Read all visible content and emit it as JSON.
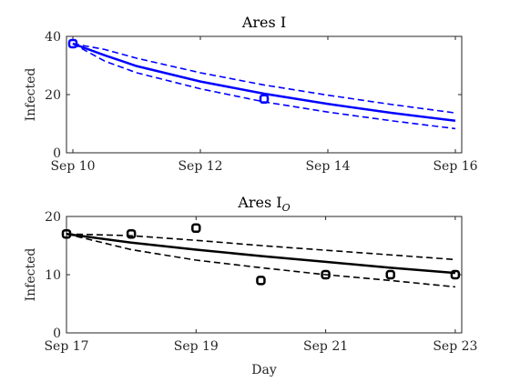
{
  "chart_data": [
    {
      "type": "line",
      "title": "Ares I",
      "ylabel": "Infected",
      "xlabel": "",
      "color": "#0000ff",
      "xlim": [
        9.9,
        16.1
      ],
      "ylim": [
        0,
        40
      ],
      "xticks": [
        10,
        12,
        14,
        16
      ],
      "xtick_labels": [
        "Sep 10",
        "Sep 12",
        "Sep 14",
        "Sep 16"
      ],
      "yticks": [
        0,
        20,
        40
      ],
      "ytick_labels": [
        "0",
        "20",
        "40"
      ],
      "series": [
        {
          "style": "solid",
          "x": [
            10,
            10.5,
            11,
            12,
            13,
            14,
            15,
            16
          ],
          "y": [
            37.5,
            33.5,
            29.8,
            24.5,
            20.3,
            16.8,
            13.7,
            11.0
          ]
        },
        {
          "style": "dashed",
          "x": [
            10,
            10.5,
            11,
            12,
            13,
            14,
            15,
            16
          ],
          "y": [
            37.5,
            35.5,
            32.5,
            27.5,
            23.3,
            19.8,
            16.6,
            13.7
          ]
        },
        {
          "style": "dashed",
          "x": [
            10,
            10.5,
            11,
            12,
            13,
            14,
            15,
            16
          ],
          "y": [
            37.5,
            31.5,
            27.5,
            22.0,
            17.5,
            14.0,
            11.0,
            8.3
          ]
        },
        {
          "style": "markers",
          "x": [
            10,
            13
          ],
          "y": [
            37.5,
            18.5
          ]
        }
      ]
    },
    {
      "type": "line",
      "title": "Ares I",
      "title_subscript": "O",
      "ylabel": "Infected",
      "xlabel": "Day",
      "color": "#000000",
      "xlim": [
        17,
        23.1
      ],
      "ylim": [
        0,
        20
      ],
      "xticks": [
        17,
        19,
        21,
        23
      ],
      "xtick_labels": [
        "Sep 17",
        "Sep 19",
        "Sep 21",
        "Sep 23"
      ],
      "yticks": [
        0,
        10,
        20
      ],
      "ytick_labels": [
        "0",
        "10",
        "20"
      ],
      "series": [
        {
          "style": "solid",
          "x": [
            17,
            18,
            19,
            20,
            21,
            22,
            23
          ],
          "y": [
            17,
            15.5,
            14.3,
            13.2,
            12.2,
            11.2,
            10.3
          ]
        },
        {
          "style": "dashed",
          "x": [
            17,
            18,
            19,
            20,
            21,
            22,
            23
          ],
          "y": [
            17,
            16.7,
            15.9,
            15.0,
            14.2,
            13.4,
            12.6
          ]
        },
        {
          "style": "dashed",
          "x": [
            17,
            18,
            19,
            20,
            21,
            22,
            23
          ],
          "y": [
            17,
            14.3,
            12.5,
            11.2,
            10.0,
            9.0,
            7.9
          ]
        },
        {
          "style": "markers",
          "x": [
            17,
            18,
            19,
            20,
            21,
            22,
            23
          ],
          "y": [
            17,
            17,
            18,
            9,
            10,
            10,
            10
          ]
        }
      ]
    }
  ]
}
